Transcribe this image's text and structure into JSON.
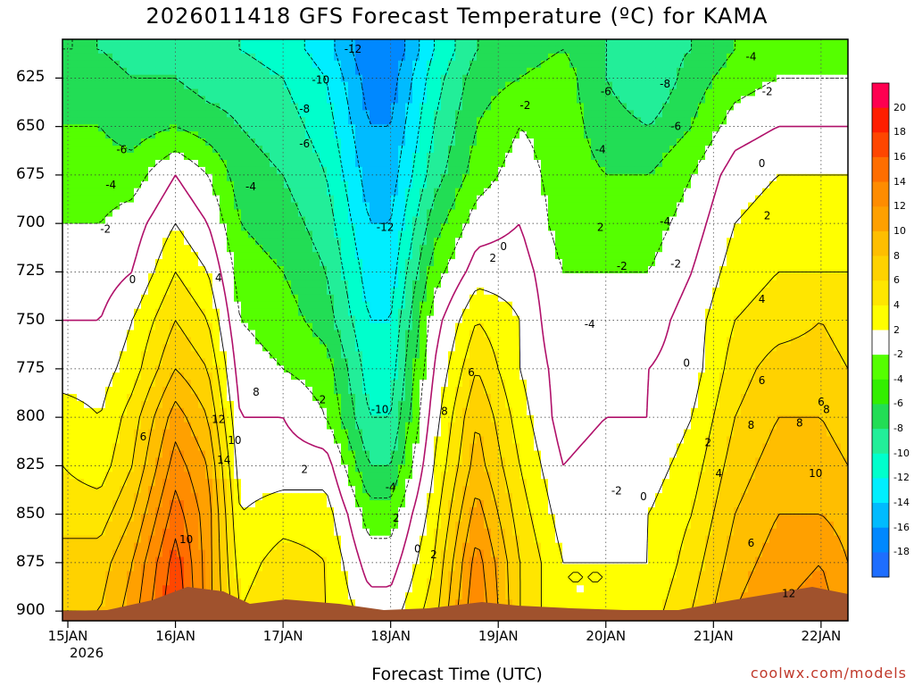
{
  "title": "2026011418 GFS Forecast Temperature (ºC) for KAMA",
  "x_axis_label": "Forecast Time (UTC)",
  "year_label": "2026",
  "watermark": "coolwx.com/models",
  "y_ticks": [
    "625",
    "650",
    "675",
    "700",
    "725",
    "750",
    "775",
    "800",
    "825",
    "850",
    "875",
    "900"
  ],
  "x_ticks": [
    "15JAN",
    "16JAN",
    "17JAN",
    "18JAN",
    "19JAN",
    "20JAN",
    "21JAN",
    "22JAN"
  ],
  "colorbar": {
    "labels": [
      "20",
      "18",
      "16",
      "14",
      "12",
      "10",
      "8",
      "6",
      "4",
      "2",
      "-2",
      "-4",
      "-6",
      "-8",
      "-10",
      "-12",
      "-14",
      "-16",
      "-18"
    ],
    "colors": [
      "#ff0050",
      "#ff1e00",
      "#ff4600",
      "#ff6e00",
      "#ff8c00",
      "#ffa000",
      "#ffbe00",
      "#ffd200",
      "#ffe600",
      "#ffff00",
      "#ffffff",
      "#55ff00",
      "#33ee00",
      "#22dd55",
      "#22ee99",
      "#00ffcc",
      "#00eeff",
      "#00bbff",
      "#0088ff",
      "#1e6eff"
    ]
  },
  "contour_labels": [
    {
      "text": "-12",
      "t": 2.65,
      "p": 610
    },
    {
      "text": "-10",
      "t": 2.35,
      "p": 626
    },
    {
      "text": "-8",
      "t": 2.2,
      "p": 641
    },
    {
      "text": "-6",
      "t": 0.5,
      "p": 662
    },
    {
      "text": "-6",
      "t": 2.2,
      "p": 659
    },
    {
      "text": "-4",
      "t": 0.4,
      "p": 680
    },
    {
      "text": "-4",
      "t": 1.7,
      "p": 681
    },
    {
      "text": "-2",
      "t": 0.35,
      "p": 703
    },
    {
      "text": "0",
      "t": 0.6,
      "p": 729
    },
    {
      "text": "4",
      "t": 1.4,
      "p": 728
    },
    {
      "text": "8",
      "t": 1.75,
      "p": 787
    },
    {
      "text": "10",
      "t": 1.55,
      "p": 812
    },
    {
      "text": "12",
      "t": 1.4,
      "p": 801
    },
    {
      "text": "14",
      "t": 1.45,
      "p": 822
    },
    {
      "text": "6",
      "t": 0.7,
      "p": 810
    },
    {
      "text": "10",
      "t": 1.1,
      "p": 863
    },
    {
      "text": "-2",
      "t": 2.35,
      "p": 791
    },
    {
      "text": "2",
      "t": 2.2,
      "p": 827
    },
    {
      "text": "-12",
      "t": 2.95,
      "p": 702
    },
    {
      "text": "-10",
      "t": 2.9,
      "p": 796
    },
    {
      "text": "-4",
      "t": 3.0,
      "p": 836
    },
    {
      "text": "2",
      "t": 3.05,
      "p": 852
    },
    {
      "text": "0",
      "t": 3.25,
      "p": 868
    },
    {
      "text": "2",
      "t": 3.4,
      "p": 871
    },
    {
      "text": "-2",
      "t": 4.25,
      "p": 639
    },
    {
      "text": "0",
      "t": 4.05,
      "p": 712
    },
    {
      "text": "2",
      "t": 3.95,
      "p": 718
    },
    {
      "text": "6",
      "t": 3.75,
      "p": 777
    },
    {
      "text": "8",
      "t": 3.5,
      "p": 797
    },
    {
      "text": "-6",
      "t": 5.0,
      "p": 632
    },
    {
      "text": "-8",
      "t": 5.55,
      "p": 628
    },
    {
      "text": "-4",
      "t": 4.95,
      "p": 662
    },
    {
      "text": "-6",
      "t": 5.65,
      "p": 650
    },
    {
      "text": "-4",
      "t": 6.35,
      "p": 614
    },
    {
      "text": "-2",
      "t": 6.5,
      "p": 632
    },
    {
      "text": "2",
      "t": 4.95,
      "p": 702
    },
    {
      "text": "-2",
      "t": 5.15,
      "p": 722
    },
    {
      "text": "-2",
      "t": 5.65,
      "p": 721
    },
    {
      "text": "-4",
      "t": 5.55,
      "p": 699
    },
    {
      "text": "-4",
      "t": 4.85,
      "p": 752
    },
    {
      "text": "0",
      "t": 5.75,
      "p": 772
    },
    {
      "text": "2",
      "t": 5.95,
      "p": 813
    },
    {
      "text": "4",
      "t": 6.05,
      "p": 829
    },
    {
      "text": "-2",
      "t": 5.1,
      "p": 838
    },
    {
      "text": "0",
      "t": 5.35,
      "p": 841
    },
    {
      "text": "0",
      "t": 6.45,
      "p": 669
    },
    {
      "text": "2",
      "t": 6.5,
      "p": 696
    },
    {
      "text": "4",
      "t": 6.45,
      "p": 739
    },
    {
      "text": "6",
      "t": 6.45,
      "p": 781
    },
    {
      "text": "8",
      "t": 6.35,
      "p": 804
    },
    {
      "text": "6",
      "t": 7.0,
      "p": 792
    },
    {
      "text": "8",
      "t": 6.8,
      "p": 803
    },
    {
      "text": "8",
      "t": 7.05,
      "p": 796
    },
    {
      "text": "10",
      "t": 6.95,
      "p": 829
    },
    {
      "text": "6",
      "t": 6.35,
      "p": 865
    },
    {
      "text": "12",
      "t": 6.7,
      "p": 891
    }
  ],
  "chart_data": {
    "type": "heatmap",
    "title": "2026011418 GFS Forecast Temperature (ºC) for KAMA",
    "xlabel": "Forecast Time (UTC)",
    "ylabel": "",
    "x_ticks": [
      "15JAN 2026",
      "16JAN",
      "17JAN",
      "18JAN",
      "19JAN",
      "20JAN",
      "21JAN",
      "22JAN"
    ],
    "y_ticks_hPa": [
      625,
      650,
      675,
      700,
      725,
      750,
      775,
      800,
      825,
      850,
      875,
      900
    ],
    "ylim_hPa": [
      605,
      905
    ],
    "y_inverted": true,
    "xlim_days_from_15JAN00Z": [
      -0.05,
      7.25
    ],
    "colorbar_range": [
      -20,
      22
    ],
    "contour_interval": 2,
    "temperature_field_estimate": {
      "time_days": [
        -0.05,
        0.3,
        0.6,
        1.0,
        1.3,
        1.6,
        2.0,
        2.4,
        2.8,
        3.0,
        3.4,
        3.8,
        4.2,
        4.6,
        5.0,
        5.4,
        5.8,
        6.2,
        6.6,
        7.0,
        7.25
      ],
      "pressure_hPa": [
        610,
        625,
        650,
        675,
        700,
        725,
        750,
        775,
        800,
        825,
        850,
        875,
        900
      ],
      "values": [
        [
          -6,
          -6,
          -7,
          -8,
          -8,
          -8,
          -9,
          -11,
          -16,
          -16,
          -10,
          -6,
          -5,
          -4,
          -6,
          -7,
          -6,
          -4,
          -3,
          -3,
          -3
        ],
        [
          -5,
          -5,
          -6,
          -6,
          -7,
          -7,
          -8,
          -10,
          -15,
          -15,
          -9,
          -5,
          -4,
          -3,
          -6,
          -8,
          -5,
          -3,
          -2,
          -2,
          -2
        ],
        [
          -4,
          -4,
          -5,
          -4,
          -5,
          -6,
          -7,
          -9,
          -14,
          -14,
          -8,
          -4,
          -2,
          -3,
          -5,
          -6,
          -4,
          -1,
          0,
          0,
          0
        ],
        [
          -3,
          -3,
          -3,
          0,
          -2,
          -5,
          -6,
          -8,
          -13,
          -13,
          -7,
          -3,
          -1,
          -3,
          -4,
          -4,
          -2,
          1,
          2,
          2,
          2
        ],
        [
          -2,
          -2,
          -1,
          2,
          0,
          -4,
          -5,
          -7,
          -12,
          -12,
          -5,
          -1,
          0,
          -3,
          -3,
          -3,
          -1,
          2,
          3,
          3,
          3
        ],
        [
          -1,
          -1,
          0,
          4,
          2,
          -3,
          -4,
          -6,
          -11,
          -11,
          -3,
          1,
          1,
          -2,
          -2,
          -2,
          0,
          3,
          4,
          4,
          4
        ],
        [
          0,
          0,
          2,
          6,
          4,
          -2,
          -3,
          -5,
          -10,
          -10,
          -1,
          4,
          2,
          -2,
          -1,
          -1,
          1,
          4,
          5,
          6,
          5
        ],
        [
          1,
          1,
          3,
          8,
          6,
          -1,
          -2,
          -3,
          -9,
          -9,
          0,
          6,
          2,
          -1,
          -1,
          0,
          1,
          5,
          7,
          7,
          6
        ],
        [
          3,
          2,
          5,
          11,
          8,
          0,
          0,
          -2,
          -8,
          -8,
          1,
          8,
          3,
          -1,
          0,
          0,
          2,
          6,
          8,
          8,
          7
        ],
        [
          4,
          3,
          6,
          13,
          10,
          1,
          1,
          1,
          -6,
          -6,
          2,
          9,
          4,
          0,
          1,
          1,
          3,
          7,
          9,
          9,
          8
        ],
        [
          5,
          5,
          8,
          15,
          11,
          2,
          3,
          3,
          -3,
          -3,
          3,
          11,
          5,
          1,
          1,
          2,
          4,
          8,
          10,
          10,
          9
        ],
        [
          7,
          7,
          10,
          17,
          11,
          3,
          5,
          4,
          -1,
          -1,
          4,
          13,
          6,
          2,
          2,
          2,
          5,
          9,
          11,
          12,
          10
        ],
        [
          8,
          8,
          11,
          18,
          11,
          4,
          6,
          4,
          1,
          1,
          5,
          14,
          6,
          2,
          2,
          3,
          6,
          10,
          12,
          13,
          11
        ]
      ]
    }
  }
}
